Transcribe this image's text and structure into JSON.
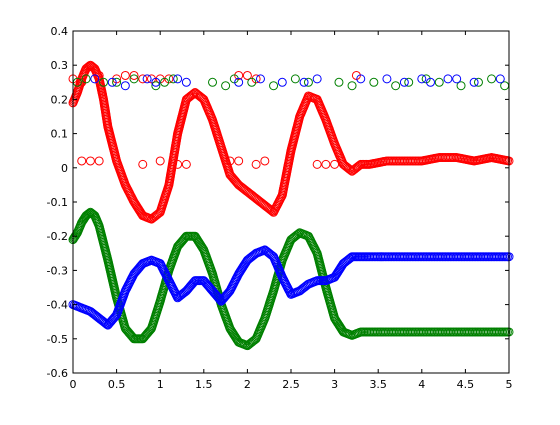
{
  "chart_data": {
    "type": "scatter",
    "title": "",
    "xlabel": "",
    "ylabel": "",
    "xlim": [
      0,
      5
    ],
    "ylim": [
      -0.6,
      0.4
    ],
    "x_ticks": [
      0,
      0.5,
      1,
      1.5,
      2,
      2.5,
      3,
      3.5,
      4,
      4.5,
      5
    ],
    "x_tick_labels": [
      "0",
      "0.5",
      "1",
      "1.5",
      "2",
      "2.5",
      "3",
      "3.5",
      "4",
      "4.5",
      "5"
    ],
    "y_ticks": [
      -0.6,
      -0.5,
      -0.4,
      -0.3,
      -0.2,
      -0.1,
      0,
      0.1,
      0.2,
      0.3,
      0.4
    ],
    "y_tick_labels": [
      "-0.6",
      "-0.5",
      "-0.4",
      "-0.3",
      "-0.2",
      "-0.1",
      "0",
      "0.1",
      "0.2",
      "0.3",
      "0.4"
    ],
    "grid": false,
    "legend": "none",
    "marker": "open-circle",
    "series": [
      {
        "color": "#ff0000",
        "x": [
          0.0,
          0.05,
          0.1,
          0.15,
          0.2,
          0.25,
          0.3,
          0.35,
          0.4,
          0.5,
          0.6,
          0.7,
          0.8,
          0.9,
          1.0,
          1.1,
          1.2,
          1.3,
          1.4,
          1.5,
          1.6,
          1.7,
          1.8,
          1.9,
          2.0,
          2.1,
          2.2,
          2.3,
          2.4,
          2.5,
          2.6,
          2.7,
          2.8,
          2.9,
          3.0,
          3.1,
          3.2,
          3.3,
          3.4,
          3.6,
          3.8,
          4.0,
          4.2,
          4.4,
          4.6,
          4.8,
          5.0
        ],
        "y": [
          0.19,
          0.22,
          0.26,
          0.29,
          0.3,
          0.29,
          0.26,
          0.2,
          0.12,
          0.02,
          -0.05,
          -0.1,
          -0.14,
          -0.15,
          -0.13,
          -0.05,
          0.1,
          0.2,
          0.22,
          0.2,
          0.14,
          0.06,
          -0.02,
          -0.05,
          -0.07,
          -0.09,
          -0.11,
          -0.13,
          -0.08,
          0.05,
          0.15,
          0.21,
          0.2,
          0.14,
          0.07,
          0.01,
          -0.01,
          0.01,
          0.01,
          0.02,
          0.02,
          0.02,
          0.03,
          0.03,
          0.02,
          0.03,
          0.02
        ]
      },
      {
        "color": "#008000",
        "x": [
          0.0,
          0.05,
          0.1,
          0.15,
          0.2,
          0.25,
          0.3,
          0.4,
          0.5,
          0.6,
          0.7,
          0.8,
          0.9,
          1.0,
          1.1,
          1.2,
          1.3,
          1.4,
          1.5,
          1.6,
          1.7,
          1.8,
          1.9,
          2.0,
          2.1,
          2.2,
          2.3,
          2.4,
          2.5,
          2.6,
          2.7,
          2.8,
          2.9,
          3.0,
          3.1,
          3.2,
          3.3,
          3.4,
          3.6,
          3.8,
          4.0,
          4.2,
          4.4,
          4.6,
          4.8,
          5.0
        ],
        "y": [
          -0.21,
          -0.19,
          -0.16,
          -0.14,
          -0.13,
          -0.14,
          -0.17,
          -0.27,
          -0.38,
          -0.47,
          -0.5,
          -0.5,
          -0.47,
          -0.39,
          -0.3,
          -0.23,
          -0.2,
          -0.2,
          -0.24,
          -0.31,
          -0.4,
          -0.47,
          -0.51,
          -0.52,
          -0.5,
          -0.44,
          -0.36,
          -0.27,
          -0.21,
          -0.19,
          -0.2,
          -0.25,
          -0.35,
          -0.44,
          -0.48,
          -0.49,
          -0.48,
          -0.48,
          -0.48,
          -0.48,
          -0.48,
          -0.48,
          -0.48,
          -0.48,
          -0.48,
          -0.48
        ]
      },
      {
        "color": "#0000ff",
        "x": [
          0.0,
          0.1,
          0.2,
          0.3,
          0.4,
          0.5,
          0.6,
          0.7,
          0.8,
          0.9,
          1.0,
          1.1,
          1.2,
          1.3,
          1.4,
          1.5,
          1.6,
          1.7,
          1.8,
          1.9,
          2.0,
          2.1,
          2.2,
          2.3,
          2.4,
          2.5,
          2.6,
          2.7,
          2.8,
          2.9,
          3.0,
          3.1,
          3.2,
          3.3,
          3.4,
          3.6,
          3.8,
          4.0,
          4.2,
          4.4,
          4.6,
          4.8,
          5.0
        ],
        "y": [
          -0.4,
          -0.41,
          -0.42,
          -0.44,
          -0.46,
          -0.43,
          -0.36,
          -0.31,
          -0.28,
          -0.27,
          -0.28,
          -0.33,
          -0.38,
          -0.36,
          -0.33,
          -0.33,
          -0.36,
          -0.39,
          -0.36,
          -0.31,
          -0.27,
          -0.25,
          -0.24,
          -0.26,
          -0.32,
          -0.37,
          -0.36,
          -0.34,
          -0.33,
          -0.33,
          -0.32,
          -0.28,
          -0.26,
          -0.26,
          -0.26,
          -0.26,
          -0.26,
          -0.26,
          -0.26,
          -0.26,
          -0.26,
          -0.26,
          -0.26
        ]
      },
      {
        "color": "#ff0000",
        "x": [
          0.0,
          0.1,
          0.3,
          0.5,
          0.6,
          0.7,
          0.8,
          0.9,
          1.0,
          1.1,
          1.9,
          2.0,
          2.1,
          3.25
        ],
        "y": [
          0.26,
          0.25,
          0.27,
          0.26,
          0.27,
          0.27,
          0.26,
          0.26,
          0.26,
          0.26,
          0.27,
          0.27,
          0.26,
          0.27
        ]
      },
      {
        "color": "#ff0000",
        "x": [
          0.1,
          0.2,
          0.3,
          0.8,
          1.0,
          1.2,
          1.3,
          1.8,
          1.9,
          2.1,
          2.2,
          2.8,
          2.9,
          3.0
        ],
        "y": [
          0.02,
          0.02,
          0.02,
          0.01,
          0.02,
          0.01,
          0.01,
          0.02,
          0.02,
          0.01,
          0.02,
          0.01,
          0.01,
          0.01
        ]
      },
      {
        "color": "#008000",
        "x": [
          0.05,
          0.15,
          0.35,
          0.5,
          0.7,
          0.95,
          1.05,
          1.15,
          1.6,
          1.75,
          1.85,
          2.05,
          2.3,
          2.55,
          2.7,
          3.05,
          3.2,
          3.45,
          3.7,
          3.85,
          4.05,
          4.2,
          4.45,
          4.65,
          4.8,
          4.95
        ],
        "y": [
          0.25,
          0.26,
          0.25,
          0.25,
          0.26,
          0.24,
          0.25,
          0.26,
          0.25,
          0.24,
          0.26,
          0.25,
          0.24,
          0.26,
          0.25,
          0.25,
          0.24,
          0.25,
          0.24,
          0.25,
          0.26,
          0.25,
          0.24,
          0.25,
          0.26,
          0.24
        ]
      },
      {
        "color": "#0000ff",
        "x": [
          0.25,
          0.45,
          0.6,
          0.85,
          0.95,
          1.2,
          1.3,
          1.9,
          2.15,
          2.4,
          2.65,
          2.8,
          3.3,
          3.6,
          3.8,
          4.0,
          4.1,
          4.3,
          4.4,
          4.6,
          4.9
        ],
        "y": [
          0.26,
          0.25,
          0.24,
          0.26,
          0.25,
          0.26,
          0.25,
          0.25,
          0.26,
          0.25,
          0.25,
          0.26,
          0.26,
          0.26,
          0.25,
          0.26,
          0.25,
          0.26,
          0.26,
          0.25,
          0.26
        ]
      }
    ]
  }
}
